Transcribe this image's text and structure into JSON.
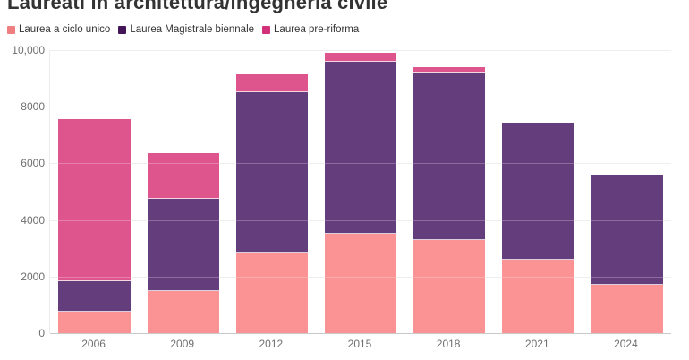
{
  "title": "Laureati in architettura/ingegneria civile",
  "legend": [
    {
      "label": "Laurea a ciclo unico",
      "swatch_color": "#ef7e80"
    },
    {
      "label": "Laurea Magistrale biennale",
      "swatch_color": "#421659"
    },
    {
      "label": "Laurea pre-riforma",
      "swatch_color": "#d23078"
    }
  ],
  "chart_data": {
    "type": "bar",
    "stacked": true,
    "title": "Laureati in architettura/ingegneria civile",
    "xlabel": "",
    "ylabel": "",
    "categories": [
      "2006",
      "2009",
      "2012",
      "2015",
      "2018",
      "2021",
      "2024"
    ],
    "series": [
      {
        "name": "Laurea a ciclo unico",
        "color": "#fb9294",
        "values": [
          750,
          1500,
          2850,
          3500,
          3300,
          2600,
          1700
        ]
      },
      {
        "name": "Laurea Magistrale biennale",
        "color": "#633d7c",
        "values": [
          1100,
          3250,
          5650,
          6100,
          5900,
          4850,
          3900
        ]
      },
      {
        "name": "Laurea pre-riforma",
        "color": "#de548d",
        "values": [
          5700,
          1600,
          650,
          300,
          200,
          0,
          0
        ]
      }
    ],
    "totals": [
      7550,
      6350,
      9150,
      9900,
      9400,
      7450,
      5600
    ],
    "ylim": [
      0,
      10000
    ],
    "yticks": [
      0,
      2000,
      4000,
      6000,
      8000,
      10000
    ],
    "ytick_labels": [
      "0",
      "2000",
      "4000",
      "6000",
      "8000",
      "10,000"
    ],
    "grid": true,
    "legend_position": "top"
  }
}
